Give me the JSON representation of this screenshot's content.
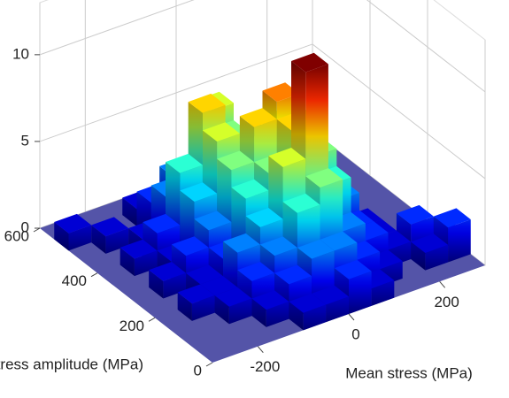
{
  "chart_data": {
    "type": "bar3d",
    "x_label": "Mean stress (MPa)",
    "y_label": "Stress amplitude (MPa)",
    "x": [
      -275,
      -225,
      -175,
      -125,
      -75,
      -25,
      25,
      75,
      125,
      175,
      225,
      275
    ],
    "y": [
      25,
      75,
      125,
      175,
      225,
      275,
      325,
      375,
      425,
      475,
      525
    ],
    "bin_width": 50,
    "values": [
      [
        null,
        null,
        null,
        null,
        1,
        1,
        2,
        1,
        null,
        null,
        null,
        null
      ],
      [
        null,
        null,
        null,
        1,
        2,
        3,
        3,
        2,
        1,
        null,
        1,
        2
      ],
      [
        null,
        null,
        1,
        2,
        3,
        5,
        6,
        3,
        2,
        1,
        2,
        1
      ],
      [
        null,
        1,
        1,
        3,
        4,
        7,
        12,
        5,
        2,
        1,
        null,
        null
      ],
      [
        null,
        null,
        1,
        2,
        5,
        6,
        8,
        6,
        3,
        1,
        null,
        null
      ],
      [
        null,
        1,
        2,
        3,
        6,
        8,
        9,
        7,
        3,
        null,
        null,
        null
      ],
      [
        null,
        null,
        1,
        4,
        7,
        6,
        7,
        4,
        2,
        null,
        null,
        null
      ],
      [
        null,
        1,
        2,
        5,
        8,
        6,
        5,
        3,
        1,
        null,
        null,
        null
      ],
      [
        null,
        null,
        1,
        3,
        4,
        7,
        3,
        2,
        null,
        null,
        null,
        null
      ],
      [
        null,
        1,
        null,
        2,
        3,
        2,
        1,
        null,
        null,
        null,
        null,
        null
      ],
      [
        1,
        null,
        null,
        1,
        1,
        null,
        null,
        null,
        null,
        null,
        null,
        null
      ]
    ],
    "colormap": "jet",
    "floor_color": "#5454a8",
    "xlim": [
      -300,
      300
    ],
    "xticks": [
      -200,
      0,
      200
    ],
    "ylim": [
      0,
      600
    ],
    "yticks": [
      0,
      200,
      400,
      600
    ],
    "zlim": [
      0,
      13
    ],
    "zticks": [
      0,
      5,
      10
    ],
    "grid": true
  }
}
